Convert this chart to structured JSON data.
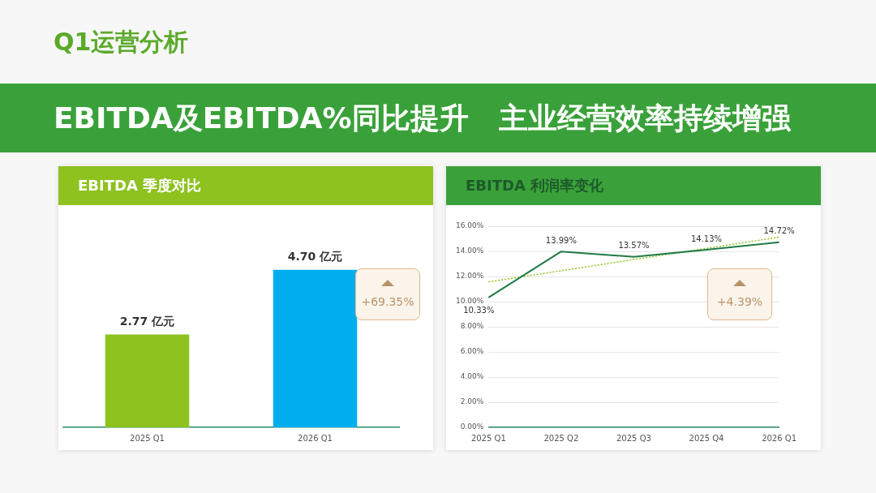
{
  "chart_data": [
    {
      "type": "bar",
      "title": "EBITDA 季度对比",
      "categories": [
        "2025 Q1",
        "2026 Q1"
      ],
      "values": [
        2.77,
        4.7
      ],
      "colors": [
        "#8dc21f",
        "#00aeef"
      ],
      "value_labels": [
        "2.77 亿元",
        "4.70 亿元"
      ],
      "grid": false,
      "legend": false,
      "annotations": [
        "Q1运营分析",
        "EBITDA及EBITDA%同比提升   主业经营效率持续增强",
        "+69.35%"
      ]
    },
    {
      "type": "line",
      "title": "EBITDA 利润率变化",
      "categories": [
        "2025 Q1",
        "2025 Q2",
        "2025 Q3",
        "2025 Q4",
        "2026 Q1"
      ],
      "series": [
        {
          "type": "line",
          "color": "#1e7b45",
          "values": [
            10.33,
            13.99,
            13.57,
            14.13,
            14.72
          ],
          "value_labels": [
            "10.33%",
            "13.99%",
            "13.57%",
            "14.13%",
            "14.72%"
          ]
        },
        {
          "type": "line",
          "color": "#8dc21f",
          "x": [
            "2025 Q1",
            "2026 Q1"
          ],
          "values": [
            11.57,
            15.13
          ],
          "line_style": "dotted"
        }
      ],
      "ylim": [
        0,
        16
      ],
      "yticks": [
        {
          "value": 0,
          "label": "0.00%"
        },
        {
          "value": 2,
          "label": "2.00%"
        },
        {
          "value": 4,
          "label": "4.00%"
        },
        {
          "value": 6,
          "label": "6.00%"
        },
        {
          "value": 8,
          "label": "8.00%"
        },
        {
          "value": 10,
          "label": "10.00%"
        },
        {
          "value": 12,
          "label": "12.00%"
        },
        {
          "value": 14,
          "label": "14.00%"
        },
        {
          "value": 16,
          "label": "16.00%"
        }
      ],
      "grid": "y",
      "marker": "none",
      "legend": false,
      "annotations": [
        "+4.39%"
      ]
    }
  ]
}
